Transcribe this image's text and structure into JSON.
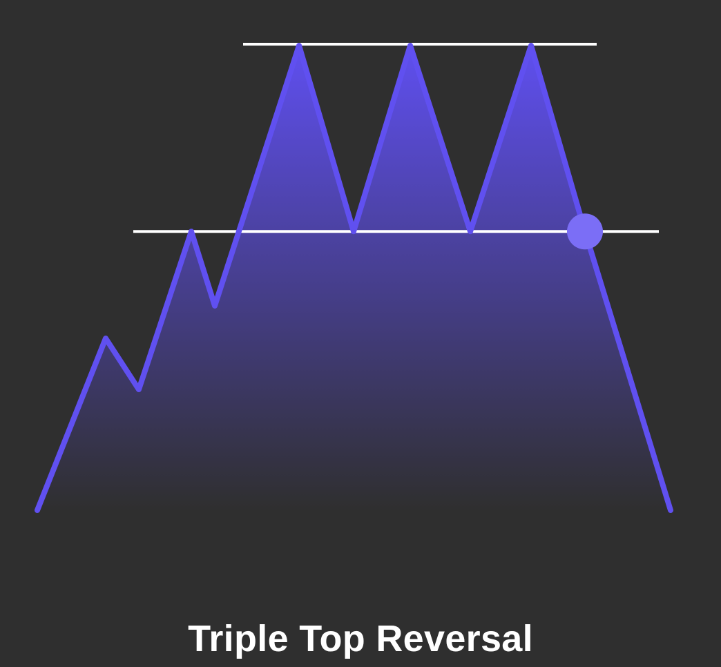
{
  "caption": "Triple Top Reversal",
  "colors": {
    "background": "#2f2f2f",
    "price_line": "#6050f0",
    "fill_top": "#5f4ff0",
    "fill_bottom": "#2f2f2f",
    "reference_lines": "#ffffff",
    "breakout_marker": "#7b6ef6",
    "caption_text": "#ffffff"
  },
  "pattern": {
    "price_path": [
      {
        "t": 0,
        "price": 0
      },
      {
        "t": 1,
        "price": 0.37
      },
      {
        "t": 2,
        "price": 0.26
      },
      {
        "t": 3,
        "price": 0.6
      },
      {
        "t": 4,
        "price": 0.44
      },
      {
        "t": 5,
        "price": 1.0
      },
      {
        "t": 6,
        "price": 0.6
      },
      {
        "t": 7,
        "price": 1.0
      },
      {
        "t": 8,
        "price": 0.6
      },
      {
        "t": 9,
        "price": 1.0
      },
      {
        "t": 10,
        "price": 0.6
      },
      {
        "t": 11,
        "price": 0
      }
    ],
    "resistance_level": 1.0,
    "support_level": 0.6,
    "breakout_point": {
      "t": 10,
      "price": 0.6
    }
  }
}
